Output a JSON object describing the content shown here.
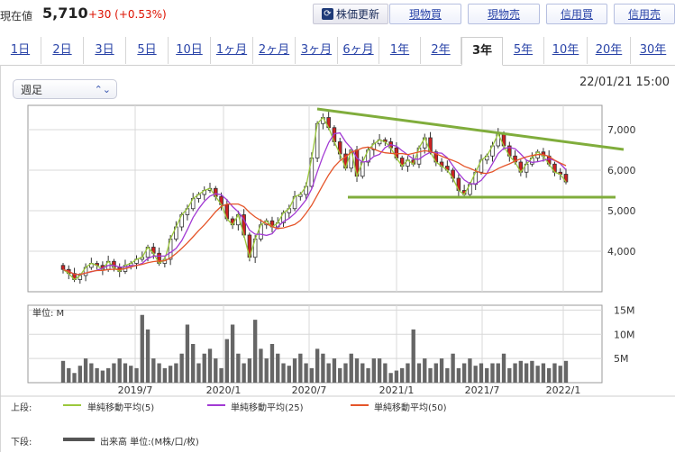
{
  "header": {
    "price_label": "現在値",
    "price_value": "5,710",
    "price_change": "+30 (+0.53%)",
    "refresh_label": "株価更新",
    "refresh_icon": "refresh-icon",
    "buttons": [
      "現物買",
      "現物売",
      "信用買",
      "信用売"
    ]
  },
  "tabs": [
    "1日",
    "2日",
    "3日",
    "5日",
    "10日",
    "1ヶ月",
    "2ヶ月",
    "3ヶ月",
    "6ヶ月",
    "1年",
    "2年",
    "3年",
    "5年",
    "10年",
    "20年",
    "30年"
  ],
  "active_tab": "3年",
  "period_select": "週足",
  "timestamp": "22/01/21 15:00",
  "legend": {
    "upper_label": "上段:",
    "lower_label": "下段:",
    "items": [
      "単純移動平均(5)",
      "単純移動平均(25)",
      "単純移動平均(50)"
    ],
    "volume_item": "出来高 単位:(M株/口/枚)"
  },
  "colors": {
    "sma5": "#9bc83c",
    "sma25": "#a23ad4",
    "sma50": "#e5552a",
    "trendline": "#80ad3c",
    "candle": "#444444"
  },
  "chart_data": [
    {
      "type": "candlestick",
      "title": "",
      "x_ticks": [
        "2019/7",
        "2020/1",
        "2020/7",
        "2021/1",
        "2021/7",
        "2022/1"
      ],
      "ylim": [
        3000,
        7600
      ],
      "y_ticks": [
        "4,000",
        "5,000",
        "6,000",
        "7,000"
      ],
      "grid": true,
      "approx_weekly_close": [
        3550,
        3450,
        3300,
        3400,
        3600,
        3700,
        3650,
        3550,
        3750,
        3600,
        3500,
        3650,
        3700,
        3800,
        3850,
        4100,
        3950,
        3700,
        3800,
        4300,
        4600,
        4900,
        5050,
        5300,
        5400,
        5500,
        5550,
        5350,
        5150,
        4800,
        4650,
        4900,
        4400,
        3850,
        4300,
        4650,
        4750,
        4600,
        4700,
        4950,
        5050,
        5350,
        5400,
        5600,
        6300,
        7150,
        7300,
        7050,
        6700,
        6400,
        6050,
        6500,
        5850,
        6200,
        6500,
        6650,
        6750,
        6700,
        6550,
        6300,
        6100,
        6250,
        6150,
        6550,
        6800,
        6450,
        6200,
        6100,
        6000,
        5800,
        5500,
        5400,
        5650,
        5950,
        6250,
        6350,
        6600,
        6900,
        6600,
        6350,
        6200,
        5950,
        6150,
        6300,
        6450,
        6350,
        6150,
        5950,
        5900,
        5710
      ],
      "sma_periods": [
        5,
        25,
        50
      ]
    },
    {
      "type": "bar",
      "ylabel": "単位: M",
      "y_ticks": [
        "5M",
        "10M",
        "15M"
      ],
      "ylim": [
        0,
        16
      ],
      "values": [
        4.5,
        3,
        2,
        3.5,
        5,
        4,
        3,
        2.5,
        3,
        4,
        5,
        4,
        3.5,
        3,
        14,
        11,
        5,
        4,
        3,
        3.5,
        4,
        6,
        12,
        8,
        4,
        6,
        7,
        5,
        3,
        9,
        12,
        6,
        4,
        5,
        13,
        7,
        5,
        8,
        6,
        4,
        3.5,
        5,
        6,
        4,
        3,
        7,
        6,
        4,
        5,
        3,
        4,
        6,
        5,
        4,
        3,
        5,
        5,
        4,
        2,
        2.5,
        3,
        4,
        11,
        4,
        5,
        3,
        4,
        5,
        3,
        6,
        3,
        4,
        5,
        3.5,
        4,
        3,
        4,
        4,
        6,
        3,
        4,
        4.5,
        4,
        4.5,
        3.5,
        4,
        3,
        4,
        3.5,
        4.5
      ]
    }
  ]
}
